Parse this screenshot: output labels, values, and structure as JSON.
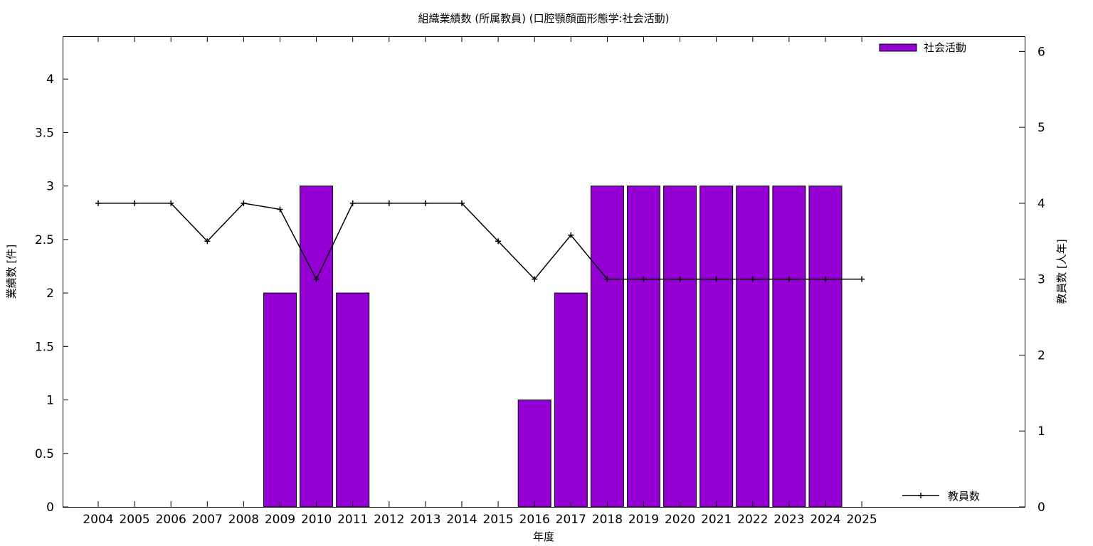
{
  "chart_data": {
    "type": "bar",
    "title": "組織業績数 (所属教員) (口腔顎顔面形態学:社会活動)",
    "xlabel": "年度",
    "ylabel": "業績数 [件]",
    "y2label": "教員数 [人年]",
    "categories": [
      "2004",
      "2005",
      "2006",
      "2007",
      "2008",
      "2009",
      "2010",
      "2011",
      "2012",
      "2013",
      "2014",
      "2015",
      "2016",
      "2017",
      "2018",
      "2019",
      "2020",
      "2021",
      "2022",
      "2023",
      "2024",
      "2025"
    ],
    "ylim": [
      0,
      4.4
    ],
    "y2lim": [
      0,
      6.2
    ],
    "yticks": [
      "0",
      "0.5",
      "1",
      "1.5",
      "2",
      "2.5",
      "3",
      "3.5",
      "4"
    ],
    "y2ticks": [
      "0",
      "1",
      "2",
      "3",
      "4",
      "5",
      "6"
    ],
    "grid": false,
    "legend_placement": "top-right",
    "series": [
      {
        "name": "社会活動",
        "kind": "bar",
        "axis": "left",
        "color": "#9400d3",
        "values": [
          0,
          0,
          0,
          0,
          0,
          2,
          3,
          2,
          0,
          0,
          0,
          0,
          1,
          2,
          3,
          3,
          3,
          3,
          3,
          3,
          3,
          0
        ]
      },
      {
        "name": "教員数",
        "kind": "line",
        "axis": "right",
        "color": "#000000",
        "values": [
          4,
          4,
          4,
          3.5,
          4,
          3.92,
          3,
          4,
          4,
          4,
          4,
          3.5,
          3,
          3.58,
          3,
          3,
          3,
          3,
          3,
          3,
          3,
          3
        ]
      }
    ]
  }
}
